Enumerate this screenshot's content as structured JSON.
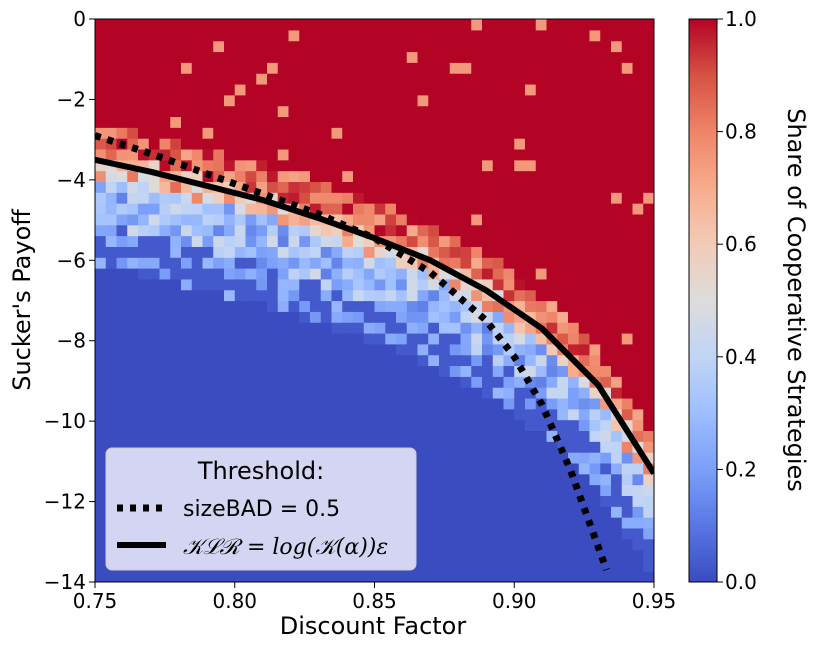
{
  "chart_data": {
    "type": "heatmap",
    "xlabel": "Discount Factor",
    "ylabel": "Sucker's Payoff",
    "xlim": [
      0.75,
      0.95
    ],
    "ylim": [
      -14,
      0
    ],
    "x_ticks": [
      "0.75",
      "0.80",
      "0.85",
      "0.90",
      "0.95"
    ],
    "y_ticks": [
      "0",
      "−2",
      "−4",
      "−6",
      "−8",
      "−10",
      "−12",
      "−14"
    ],
    "colormap": "coolwarm",
    "colorbar": {
      "label": "Share of Cooperative Strategies",
      "range": [
        0,
        1
      ],
      "ticks": [
        "0.0",
        "0.2",
        "0.4",
        "0.6",
        "0.8",
        "1.0"
      ]
    },
    "grid": false,
    "legend": {
      "title": "Threshold:",
      "placement": "lower-left",
      "entries": [
        {
          "label": "sizeBAD = 0.5",
          "style": "dotted",
          "color": "#000000"
        },
        {
          "label": "𝒦ℒℛ = log(𝒦(α))ε",
          "style": "solid",
          "color": "#000000"
        }
      ]
    },
    "series": [
      {
        "name": "sizeBAD = 0.5",
        "style": "dotted",
        "x": [
          0.75,
          0.77,
          0.79,
          0.81,
          0.83,
          0.85,
          0.87,
          0.89,
          0.9,
          0.91,
          0.92,
          0.933
        ],
        "y": [
          -2.9,
          -3.35,
          -3.85,
          -4.35,
          -4.85,
          -5.45,
          -6.3,
          -7.5,
          -8.4,
          -9.6,
          -11.2,
          -13.7
        ]
      },
      {
        "name": "𝒦ℒℛ = log(𝒦(α))ε",
        "style": "solid",
        "x": [
          0.75,
          0.77,
          0.79,
          0.81,
          0.83,
          0.85,
          0.87,
          0.89,
          0.91,
          0.93,
          0.95
        ],
        "y": [
          -3.5,
          -3.8,
          -4.15,
          -4.5,
          -4.95,
          -5.45,
          -6.0,
          -6.75,
          -7.7,
          -9.1,
          -11.3
        ]
      }
    ]
  }
}
